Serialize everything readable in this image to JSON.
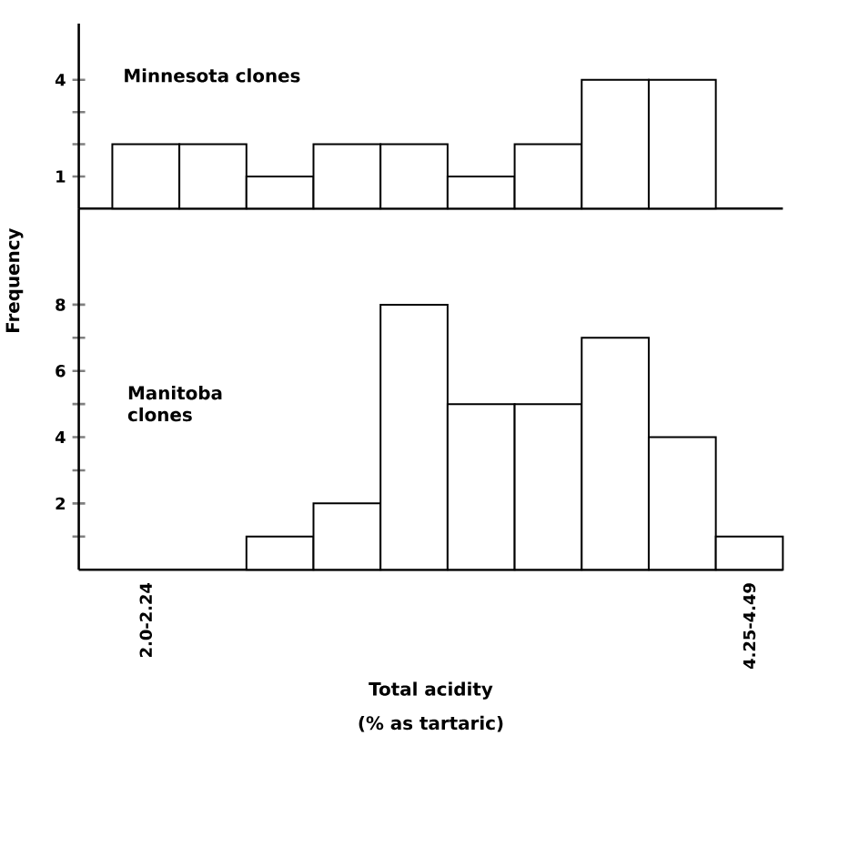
{
  "chart_data": [
    {
      "type": "bar",
      "title": "Minnesota clones",
      "categories": [
        null,
        null,
        null,
        null,
        null,
        null,
        null,
        null,
        null,
        null
      ],
      "values": [
        2,
        2,
        1,
        2,
        2,
        1,
        2,
        4,
        4,
        0
      ],
      "color": "#ffffff",
      "ylim": [
        0,
        5.75
      ],
      "yticks": [
        1,
        {
          "value": 2,
          "label": null
        },
        {
          "value": 3,
          "label": null
        },
        4
      ],
      "tick_labels": "y"
    },
    {
      "type": "bar",
      "title": "Manitoba clones",
      "ylabel": "Frequency",
      "xlabel": "Total acidity",
      "annotations": [
        "(% as tartaric)"
      ],
      "categories": [
        "2.0-2.24",
        null,
        null,
        null,
        null,
        null,
        null,
        null,
        null,
        "4.25-4.49"
      ],
      "values": [
        0,
        0,
        1,
        2,
        8,
        5,
        5,
        7,
        4,
        1
      ],
      "color": "#ffffff",
      "ylim": [
        0,
        10.9
      ],
      "yticks": [
        {
          "value": 1,
          "label": null
        },
        2,
        {
          "value": 3,
          "label": null
        },
        4,
        {
          "value": 5,
          "label": null
        },
        6,
        {
          "value": 7,
          "label": null
        },
        8
      ]
    }
  ]
}
